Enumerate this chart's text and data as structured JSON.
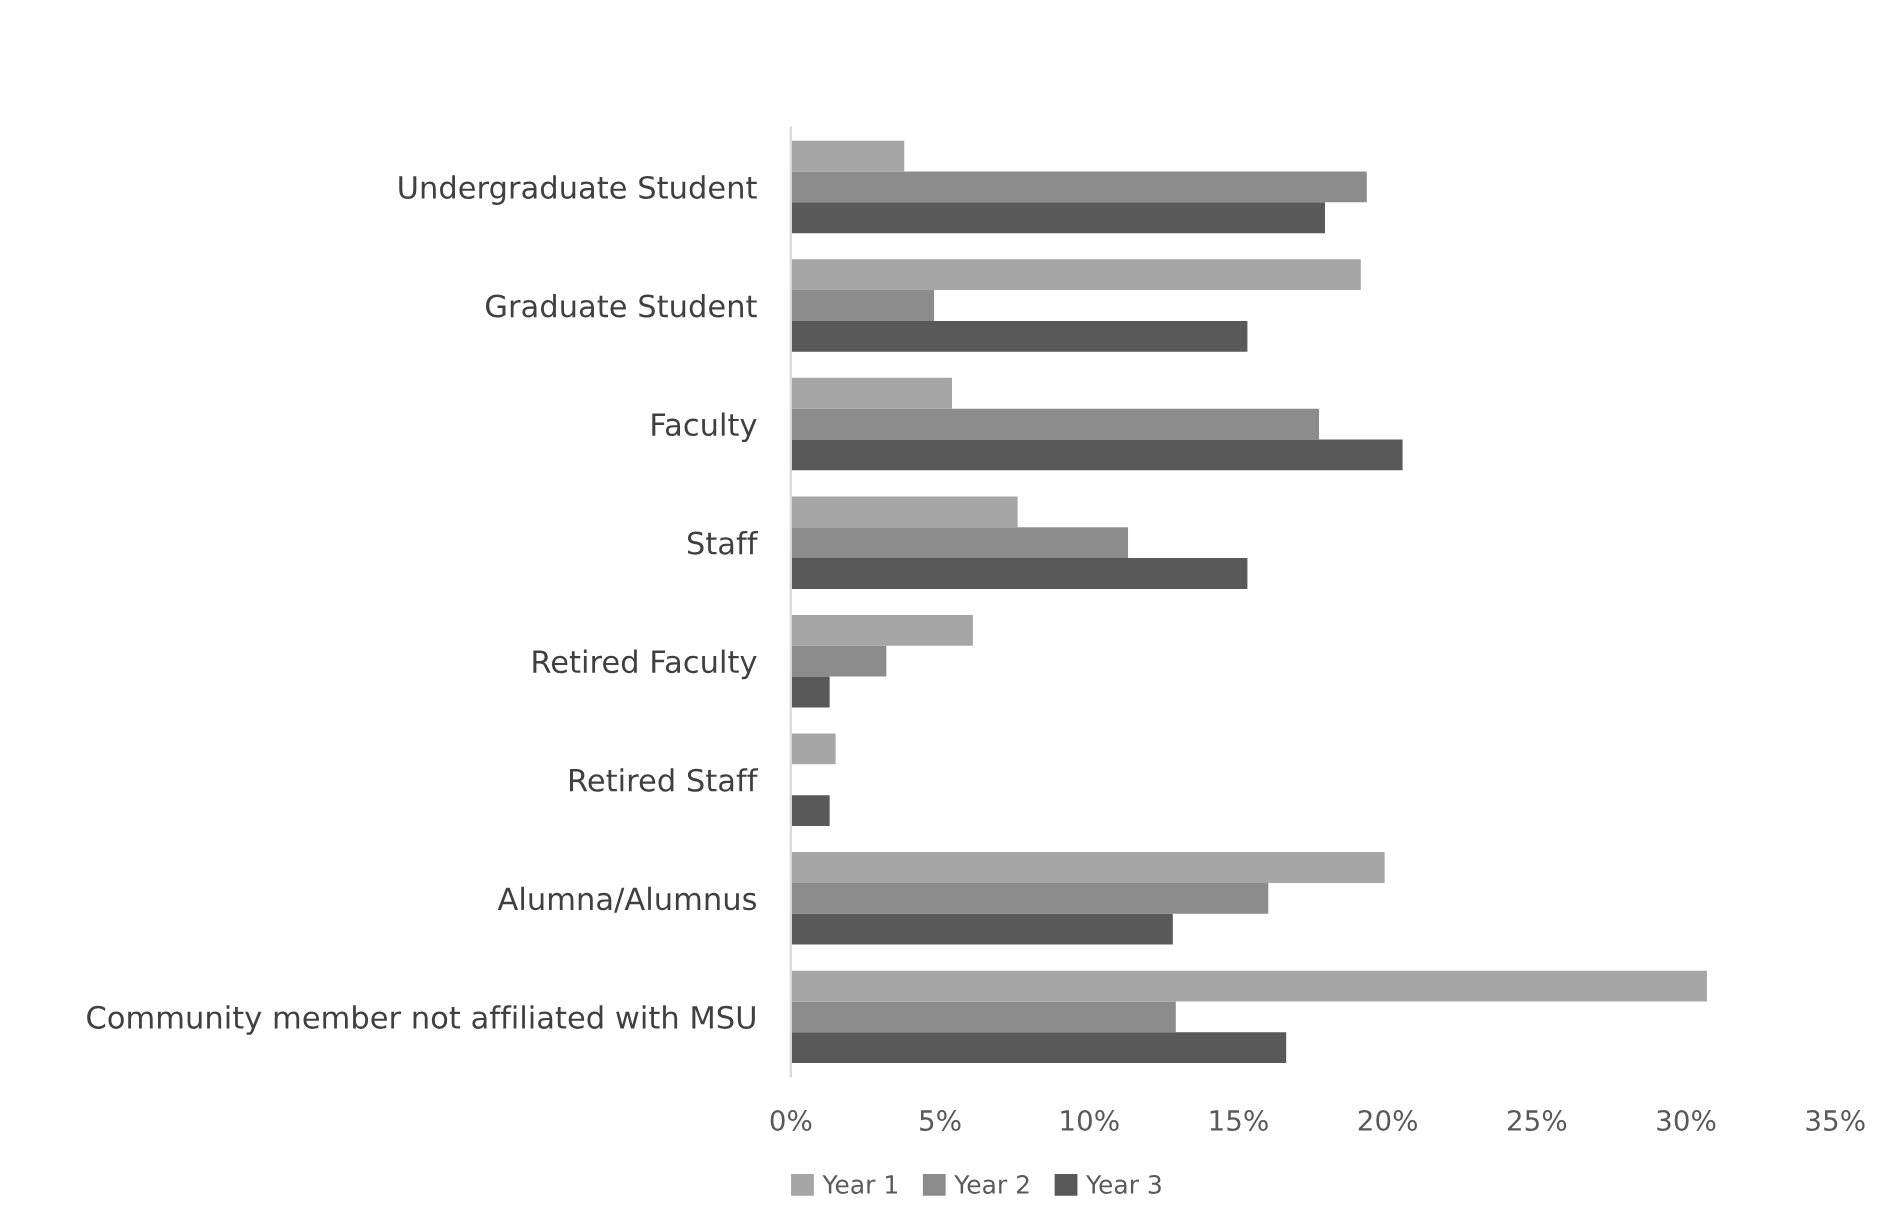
{
  "chart_data": {
    "type": "bar",
    "orientation": "horizontal",
    "categories": [
      "Undergraduate Student",
      "Graduate Student",
      "Faculty",
      "Staff",
      "Retired Faculty",
      "Retired Staff",
      "Alumna/Alumnus",
      "Community member not affiliated with MSU"
    ],
    "series": [
      {
        "name": "Year 1",
        "color": "#a6a6a6",
        "values": [
          3.8,
          19.1,
          5.4,
          7.6,
          6.1,
          1.5,
          19.9,
          30.7
        ]
      },
      {
        "name": "Year 2",
        "color": "#8c8c8c",
        "values": [
          19.3,
          4.8,
          17.7,
          11.3,
          3.2,
          0,
          16.0,
          12.9
        ]
      },
      {
        "name": "Year 3",
        "color": "#595959",
        "values": [
          17.9,
          15.3,
          20.5,
          15.3,
          1.3,
          1.3,
          12.8,
          16.6
        ]
      }
    ],
    "xlim": [
      0,
      35
    ],
    "xticks": [
      {
        "value": 0,
        "label": "0%"
      },
      {
        "value": 5,
        "label": "5%"
      },
      {
        "value": 10,
        "label": "10%"
      },
      {
        "value": 15,
        "label": "15%"
      },
      {
        "value": 20,
        "label": "20%"
      },
      {
        "value": 25,
        "label": "25%"
      },
      {
        "value": 30,
        "label": "30%"
      },
      {
        "value": 35,
        "label": "35%"
      }
    ],
    "grid": false,
    "legend": "bottom left"
  }
}
